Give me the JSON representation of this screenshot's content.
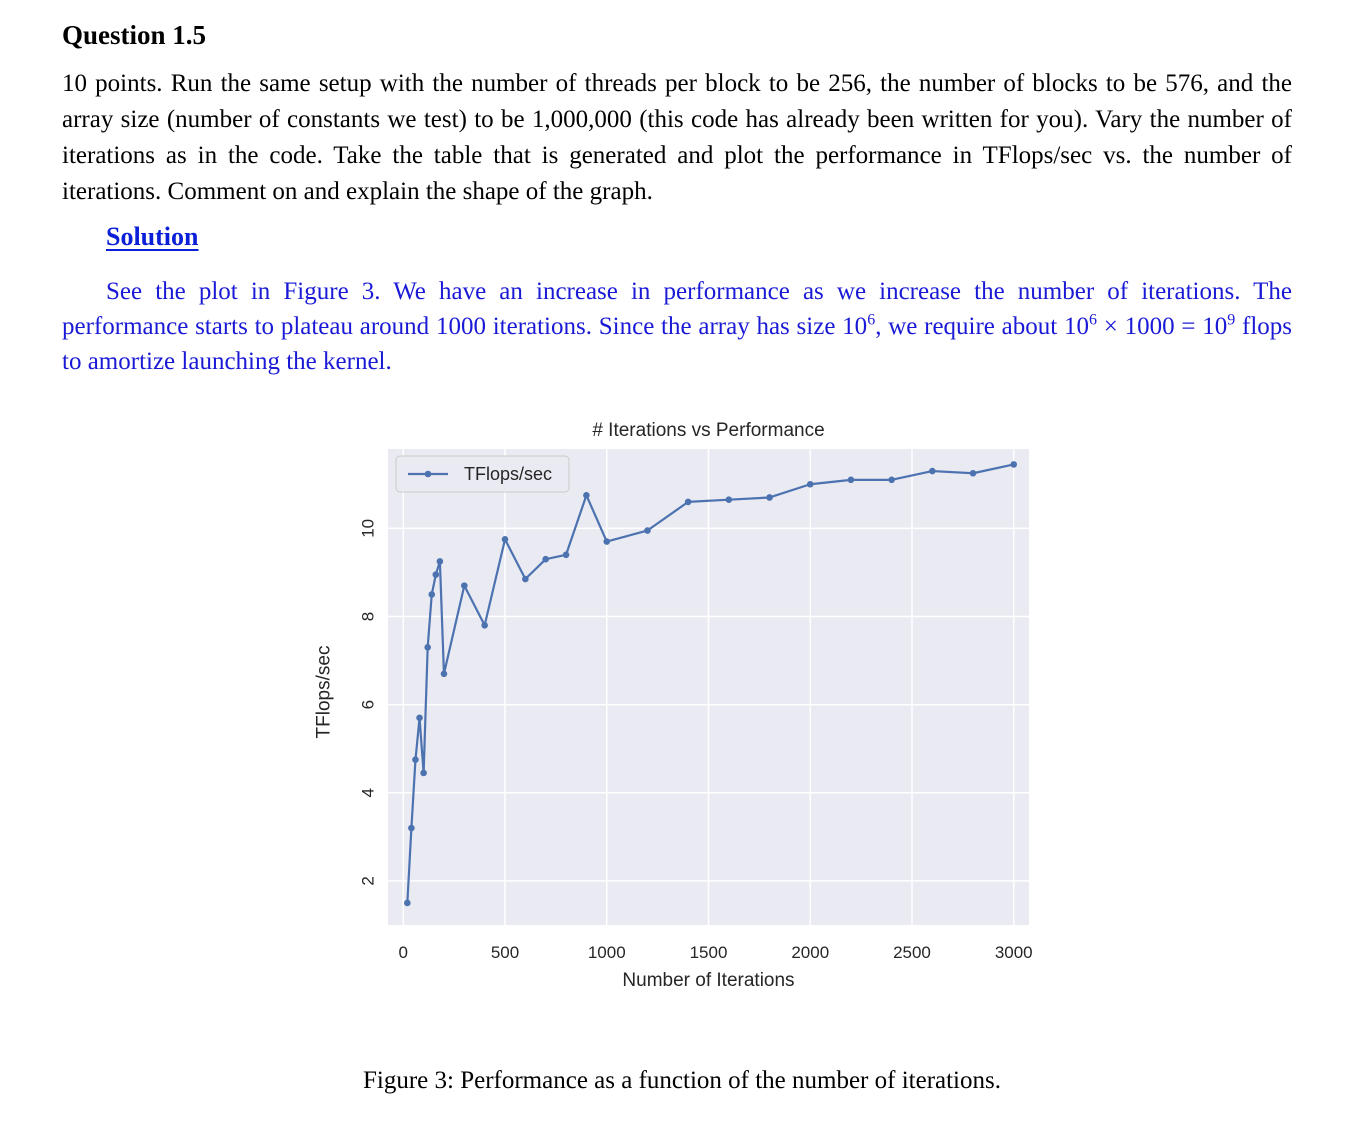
{
  "question": {
    "heading": "Question 1.5",
    "body": "10 points. Run the same setup with the number of threads per block to be 256, the number of blocks to be 576, and the array size (number of constants we test) to be 1,000,000 (this code has already been written for you). Vary the number of iterations as in the code. Take the table that is generated and plot the performance in TFlops/sec vs. the number of iterations. Comment on and explain the shape of the graph."
  },
  "solution": {
    "heading": "Solution",
    "text_1": "See the plot in Figure 3. We have an increase in performance as we increase the number of iterations. The performance starts to plateau around 1000 iterations. Since the array has size 10",
    "sup_1": "6",
    "text_2": ", we require about 10",
    "sup_2": "6",
    "text_3": " × 1000 = 10",
    "sup_3": "9",
    "text_4": " flops to amortize launching the kernel."
  },
  "figure": {
    "caption": "Figure 3: Performance as a function of the number of iterations."
  },
  "chart_data": {
    "type": "line",
    "title": "# Iterations vs Performance",
    "xlabel": "Number of Iterations",
    "ylabel": "TFlops/sec",
    "xlim": [
      -75,
      3075
    ],
    "ylim": [
      1.0,
      11.8
    ],
    "xticks": [
      0,
      500,
      1000,
      1500,
      2000,
      2500,
      3000
    ],
    "yticks": [
      2,
      4,
      6,
      8,
      10
    ],
    "grid": true,
    "legend_position": "top-left",
    "series_color": "#4c72b0",
    "background_color": "#eaeaf2",
    "series": [
      {
        "name": "TFlops/sec",
        "x": [
          20,
          40,
          60,
          80,
          100,
          120,
          140,
          160,
          180,
          200,
          300,
          400,
          500,
          600,
          700,
          800,
          900,
          1000,
          1200,
          1400,
          1600,
          1800,
          2000,
          2200,
          2400,
          2600,
          2800,
          3000
        ],
        "y": [
          1.5,
          3.2,
          4.75,
          5.7,
          4.45,
          7.3,
          8.5,
          8.95,
          9.25,
          6.7,
          8.7,
          7.8,
          9.75,
          8.85,
          9.3,
          9.4,
          10.75,
          9.7,
          9.95,
          10.6,
          10.65,
          10.7,
          11.0,
          11.1,
          11.1,
          11.3,
          11.25,
          11.45
        ]
      }
    ]
  }
}
